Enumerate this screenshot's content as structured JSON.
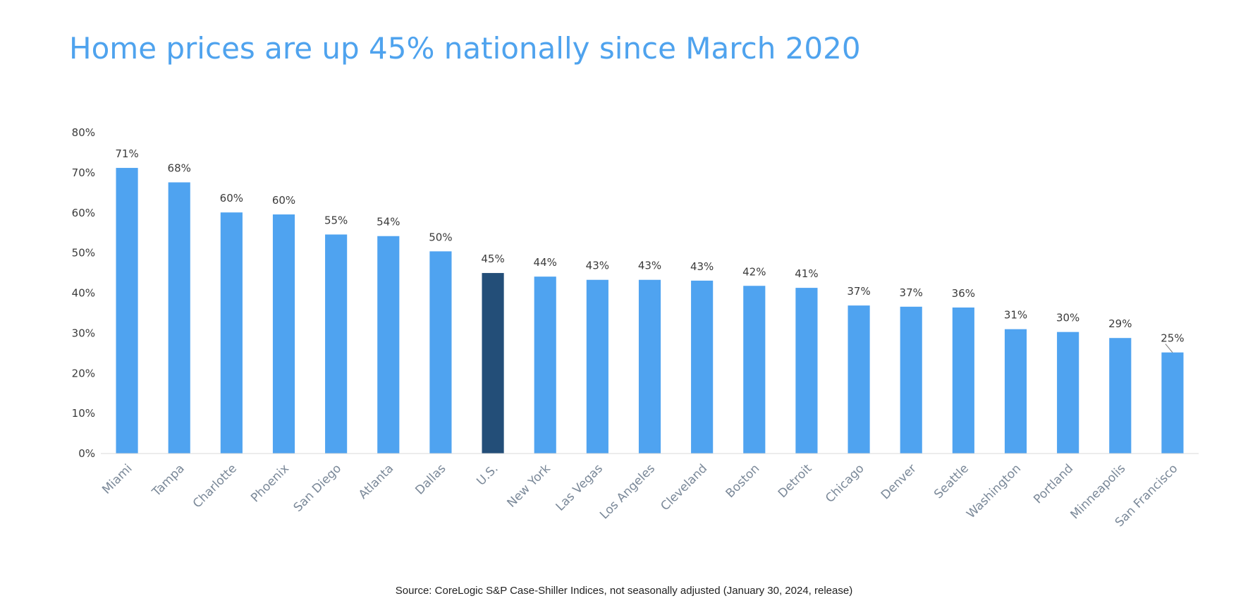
{
  "title": "Home prices are up 45% nationally since March 2020",
  "source": "Source: CoreLogic S&P Case-Shiller Indices, not seasonally adjusted (January 30, 2024, release)",
  "colors": {
    "bar": "#4fa3f0",
    "highlight": "#234e78",
    "title": "#4fa3ee",
    "axis": "#d8d8d8"
  },
  "chart_data": {
    "type": "bar",
    "title": "Home prices are up 45% nationally since March 2020",
    "xlabel": "",
    "ylabel": "",
    "ylim": [
      0,
      80
    ],
    "yticks": [
      "0%",
      "10%",
      "20%",
      "30%",
      "40%",
      "50%",
      "60%",
      "70%",
      "80%"
    ],
    "grid": false,
    "highlight_category": "U.S.",
    "categories": [
      "Miami",
      "Tampa",
      "Charlotte",
      "Phoenix",
      "San Diego",
      "Atlanta",
      "Dallas",
      "U.S.",
      "New York",
      "Las Vegas",
      "Los Angeles",
      "Cleveland",
      "Boston",
      "Detroit",
      "Chicago",
      "Denver",
      "Seattle",
      "Washington",
      "Portland",
      "Minneapolis",
      "San Francisco"
    ],
    "values": [
      71.2,
      67.6,
      60.1,
      59.6,
      54.6,
      54.2,
      50.4,
      45.0,
      44.1,
      43.3,
      43.3,
      43.1,
      41.8,
      41.3,
      36.9,
      36.6,
      36.4,
      31.0,
      30.3,
      28.8,
      25.2
    ],
    "data_labels": [
      "71%",
      "68%",
      "60%",
      "60%",
      "55%",
      "54%",
      "50%",
      "45%",
      "44%",
      "43%",
      "43%",
      "43%",
      "42%",
      "41%",
      "37%",
      "37%",
      "36%",
      "31%",
      "30%",
      "29%",
      "25%"
    ]
  }
}
